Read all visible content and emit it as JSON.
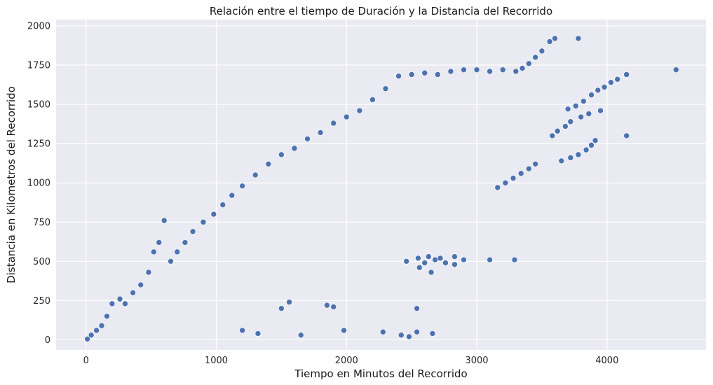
{
  "chart_data": {
    "type": "scatter",
    "title": "Relación entre el tiempo de Duración y la Distancia del Recorrido",
    "xlabel": "Tiempo en Minutos del Recorrido",
    "ylabel": "Distancia en Kilometros del Recorrido",
    "xlim": [
      -230,
      4760
    ],
    "ylim": [
      -65,
      2040
    ],
    "xticks": [
      0,
      1000,
      2000,
      3000,
      4000
    ],
    "yticks": [
      0,
      250,
      500,
      750,
      1000,
      1250,
      1500,
      1750,
      2000
    ],
    "grid": true,
    "background": "#eaeaf2",
    "marker_color": "#4c72b0",
    "series": [
      {
        "values": [
          {
            "x": 10,
            "y": 5
          },
          {
            "x": 40,
            "y": 30
          },
          {
            "x": 80,
            "y": 60
          },
          {
            "x": 120,
            "y": 90
          },
          {
            "x": 160,
            "y": 150
          },
          {
            "x": 200,
            "y": 230
          },
          {
            "x": 260,
            "y": 260
          },
          {
            "x": 300,
            "y": 230
          },
          {
            "x": 360,
            "y": 300
          },
          {
            "x": 420,
            "y": 350
          },
          {
            "x": 480,
            "y": 430
          },
          {
            "x": 520,
            "y": 560
          },
          {
            "x": 560,
            "y": 620
          },
          {
            "x": 600,
            "y": 760
          },
          {
            "x": 650,
            "y": 500
          },
          {
            "x": 700,
            "y": 560
          },
          {
            "x": 760,
            "y": 620
          },
          {
            "x": 820,
            "y": 690
          },
          {
            "x": 900,
            "y": 750
          },
          {
            "x": 980,
            "y": 800
          },
          {
            "x": 1050,
            "y": 860
          },
          {
            "x": 1120,
            "y": 920
          },
          {
            "x": 1200,
            "y": 980
          },
          {
            "x": 1300,
            "y": 1050
          },
          {
            "x": 1400,
            "y": 1120
          },
          {
            "x": 1500,
            "y": 1180
          },
          {
            "x": 1600,
            "y": 1220
          },
          {
            "x": 1700,
            "y": 1280
          },
          {
            "x": 1800,
            "y": 1320
          },
          {
            "x": 1900,
            "y": 1380
          },
          {
            "x": 2000,
            "y": 1420
          },
          {
            "x": 2100,
            "y": 1460
          },
          {
            "x": 2200,
            "y": 1530
          },
          {
            "x": 2300,
            "y": 1600
          },
          {
            "x": 2400,
            "y": 1680
          },
          {
            "x": 2500,
            "y": 1690
          },
          {
            "x": 2600,
            "y": 1700
          },
          {
            "x": 2700,
            "y": 1690
          },
          {
            "x": 2800,
            "y": 1710
          },
          {
            "x": 2900,
            "y": 1720
          },
          {
            "x": 3000,
            "y": 1720
          },
          {
            "x": 3100,
            "y": 1710
          },
          {
            "x": 3200,
            "y": 1720
          },
          {
            "x": 3300,
            "y": 1710
          },
          {
            "x": 3350,
            "y": 1730
          },
          {
            "x": 3400,
            "y": 1760
          },
          {
            "x": 3450,
            "y": 1800
          },
          {
            "x": 3500,
            "y": 1840
          },
          {
            "x": 3560,
            "y": 1900
          },
          {
            "x": 3600,
            "y": 1920
          },
          {
            "x": 3780,
            "y": 1920
          },
          {
            "x": 4530,
            "y": 1720
          },
          {
            "x": 3700,
            "y": 1470
          },
          {
            "x": 3760,
            "y": 1490
          },
          {
            "x": 3820,
            "y": 1520
          },
          {
            "x": 3880,
            "y": 1560
          },
          {
            "x": 3930,
            "y": 1590
          },
          {
            "x": 3980,
            "y": 1610
          },
          {
            "x": 4030,
            "y": 1640
          },
          {
            "x": 4080,
            "y": 1660
          },
          {
            "x": 4150,
            "y": 1690
          },
          {
            "x": 3580,
            "y": 1300
          },
          {
            "x": 3620,
            "y": 1330
          },
          {
            "x": 3680,
            "y": 1360
          },
          {
            "x": 3720,
            "y": 1390
          },
          {
            "x": 3800,
            "y": 1420
          },
          {
            "x": 3860,
            "y": 1440
          },
          {
            "x": 3950,
            "y": 1460
          },
          {
            "x": 4150,
            "y": 1300
          },
          {
            "x": 3650,
            "y": 1140
          },
          {
            "x": 3720,
            "y": 1160
          },
          {
            "x": 3780,
            "y": 1180
          },
          {
            "x": 3840,
            "y": 1210
          },
          {
            "x": 3880,
            "y": 1240
          },
          {
            "x": 3910,
            "y": 1270
          },
          {
            "x": 3160,
            "y": 970
          },
          {
            "x": 3220,
            "y": 1000
          },
          {
            "x": 3280,
            "y": 1030
          },
          {
            "x": 3340,
            "y": 1060
          },
          {
            "x": 3400,
            "y": 1090
          },
          {
            "x": 3450,
            "y": 1120
          },
          {
            "x": 2460,
            "y": 500
          },
          {
            "x": 2550,
            "y": 520
          },
          {
            "x": 2600,
            "y": 490
          },
          {
            "x": 2630,
            "y": 530
          },
          {
            "x": 2680,
            "y": 510
          },
          {
            "x": 2720,
            "y": 520
          },
          {
            "x": 2760,
            "y": 490
          },
          {
            "x": 2830,
            "y": 530
          },
          {
            "x": 2900,
            "y": 510
          },
          {
            "x": 3100,
            "y": 510
          },
          {
            "x": 3290,
            "y": 510
          },
          {
            "x": 2650,
            "y": 430
          },
          {
            "x": 2560,
            "y": 460
          },
          {
            "x": 2830,
            "y": 480
          },
          {
            "x": 1650,
            "y": 30
          },
          {
            "x": 1980,
            "y": 60
          },
          {
            "x": 2280,
            "y": 50
          },
          {
            "x": 2420,
            "y": 30
          },
          {
            "x": 2480,
            "y": 20
          },
          {
            "x": 2540,
            "y": 50
          },
          {
            "x": 2540,
            "y": 200
          },
          {
            "x": 2660,
            "y": 40
          },
          {
            "x": 1850,
            "y": 220
          },
          {
            "x": 1900,
            "y": 210
          },
          {
            "x": 1500,
            "y": 200
          },
          {
            "x": 1560,
            "y": 240
          },
          {
            "x": 1320,
            "y": 40
          },
          {
            "x": 1200,
            "y": 60
          }
        ]
      }
    ]
  }
}
